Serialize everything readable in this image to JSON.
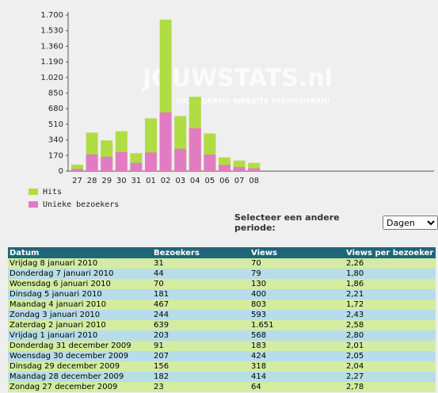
{
  "chart_data": {
    "type": "bar",
    "categories": [
      "27",
      "28",
      "29",
      "30",
      "31",
      "01",
      "02",
      "03",
      "04",
      "05",
      "06",
      "07",
      "08"
    ],
    "series": [
      {
        "name": "Hits",
        "color": "#b0dc44",
        "values": [
          70,
          420,
          335,
          435,
          195,
          575,
          1650,
          600,
          810,
          410,
          150,
          115,
          90
        ]
      },
      {
        "name": "Unieke bezoekers",
        "color": "#e27cc2",
        "values": [
          23,
          182,
          156,
          207,
          91,
          203,
          639,
          244,
          467,
          181,
          70,
          44,
          31
        ]
      }
    ],
    "ylim": [
      0,
      1700
    ],
    "yticks": [
      0,
      170,
      340,
      510,
      680,
      850,
      {
        "value": 1020,
        "label": "1.020"
      },
      {
        "value": 1190,
        "label": "1.190"
      },
      {
        "value": 1360,
        "label": "1.360"
      },
      {
        "value": 1530,
        "label": "1.530"
      },
      {
        "value": 1700,
        "label": "1.700"
      }
    ],
    "grid": false,
    "watermark": "JOUWSTATS.nl",
    "watermark_sub": "JOUW GRATIS WEBSITE STATISTIEKEN!"
  },
  "period": {
    "label": "Selecteer een andere periode:",
    "selected": "Dagen"
  },
  "table": {
    "header": [
      "Datum",
      "Bezoekers",
      "Views",
      "Views per bezoeker"
    ],
    "rows": [
      [
        "Vrijdag 8 januari 2010",
        "31",
        "70",
        "2,26"
      ],
      [
        "Donderdag 7 januari 2010",
        "44",
        "79",
        "1,80"
      ],
      [
        "Woensdag 6 januari 2010",
        "70",
        "130",
        "1,86"
      ],
      [
        "Dinsdag 5 januari 2010",
        "181",
        "400",
        "2,21"
      ],
      [
        "Maandag 4 januari 2010",
        "467",
        "803",
        "1,72"
      ],
      [
        "Zondag 3 januari 2010",
        "244",
        "593",
        "2,43"
      ],
      [
        "Zaterdag 2 januari 2010",
        "639",
        "1.651",
        "2,58"
      ],
      [
        "Vrijdag 1 januari 2010",
        "203",
        "568",
        "2,80"
      ],
      [
        "Donderdag 31 december 2009",
        "91",
        "183",
        "2,01"
      ],
      [
        "Woensdag 30 december 2009",
        "207",
        "424",
        "2,05"
      ],
      [
        "Dinsdag 29 december 2009",
        "156",
        "318",
        "2,04"
      ],
      [
        "Maandag 28 december 2009",
        "182",
        "414",
        "2,27"
      ],
      [
        "Zondag 27 december 2009",
        "23",
        "64",
        "2,78"
      ]
    ]
  }
}
